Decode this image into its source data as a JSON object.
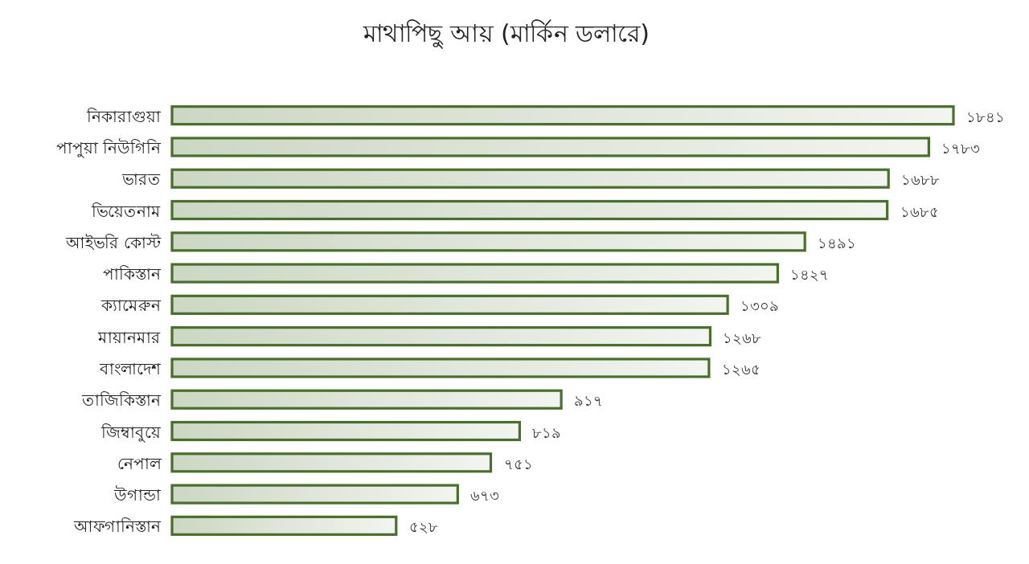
{
  "chart_data": {
    "type": "bar",
    "orientation": "horizontal",
    "title": "মাথাপিছু আয় (মার্কিন ডলারে)",
    "categories": [
      "নিকারাগুয়া",
      "পাপুয়া নিউগিনি",
      "ভারত",
      "ভিয়েতনাম",
      "আইভরি কোস্ট",
      "পাকিস্তান",
      "ক্যামেরুন",
      "মায়ানমার",
      "বাংলাদেশ",
      "তাজিকিস্তান",
      "জিম্বাবুয়ে",
      "নেপাল",
      "উগান্ডা",
      "আফগানিস্তান"
    ],
    "values": [
      1841,
      1783,
      1688,
      1685,
      1491,
      1427,
      1309,
      1268,
      1265,
      917,
      819,
      751,
      673,
      528
    ],
    "value_labels": [
      "১৮৪১",
      "১৭৮৩",
      "১৬৮৮",
      "১৬৮৫",
      "১৪৯১",
      "১৪২৭",
      "১৩০৯",
      "১২৬৮",
      "১২৬৫",
      "৯১৭",
      "৮১৯",
      "৭৫১",
      "৬৭৩",
      "৫২৮"
    ],
    "color": "#4a6f2c"
  }
}
